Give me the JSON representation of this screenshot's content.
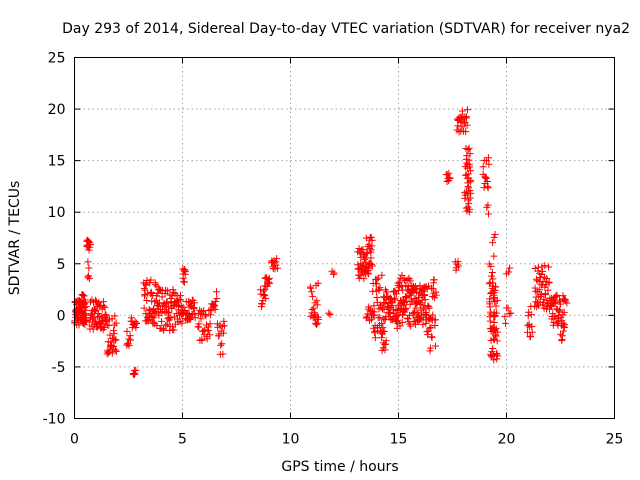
{
  "chart_data": {
    "type": "scatter",
    "title": "Day 293 of 2014, Sidereal Day-to-day VTEC variation (SDTVAR) for receiver nya2",
    "xlabel": "GPS time / hours",
    "ylabel": "SDTVAR / TECUs",
    "xlim": [
      0,
      25
    ],
    "ylim": [
      -10,
      25
    ],
    "xticks": [
      0,
      5,
      10,
      15,
      20,
      25
    ],
    "xtick_labels": [
      "0",
      "5",
      "10",
      "15",
      "20",
      "25"
    ],
    "yticks": [
      -10,
      -5,
      0,
      5,
      10,
      15,
      20,
      25
    ],
    "ytick_labels": [
      "-10",
      "-5",
      "0",
      "5",
      "10",
      "15",
      "20",
      "25"
    ],
    "grid": true,
    "marker": "+",
    "color": "#ff0000",
    "series": [
      {
        "name": "SDTVAR",
        "clusters": [
          {
            "x0": 0.0,
            "x1": 0.55,
            "y0": -1.0,
            "y1": 1.5,
            "n": 70
          },
          {
            "x0": 0.3,
            "x1": 0.5,
            "y0": 1.0,
            "y1": 2.2,
            "n": 6
          },
          {
            "x0": 0.55,
            "x1": 0.75,
            "y0": 6.3,
            "y1": 7.3,
            "n": 12
          },
          {
            "x0": 0.6,
            "x1": 0.7,
            "y0": 3.0,
            "y1": 5.2,
            "n": 5
          },
          {
            "x0": 0.7,
            "x1": 1.5,
            "y0": -1.5,
            "y1": 1.5,
            "n": 60
          },
          {
            "x0": 1.5,
            "x1": 1.95,
            "y0": -4.2,
            "y1": 0.0,
            "n": 30
          },
          {
            "x0": 2.4,
            "x1": 2.6,
            "y0": -3.0,
            "y1": -1.5,
            "n": 8
          },
          {
            "x0": 2.6,
            "x1": 2.9,
            "y0": -1.2,
            "y1": 0.0,
            "n": 12
          },
          {
            "x0": 2.7,
            "x1": 2.85,
            "y0": -5.8,
            "y1": -5.2,
            "n": 6
          },
          {
            "x0": 3.2,
            "x1": 3.95,
            "y0": -1.0,
            "y1": 3.5,
            "n": 60
          },
          {
            "x0": 3.95,
            "x1": 4.7,
            "y0": -1.5,
            "y1": 2.5,
            "n": 55
          },
          {
            "x0": 4.7,
            "x1": 5.05,
            "y0": -1.0,
            "y1": 2.0,
            "n": 25
          },
          {
            "x0": 5.0,
            "x1": 5.15,
            "y0": 3.0,
            "y1": 4.5,
            "n": 10
          },
          {
            "x0": 5.1,
            "x1": 5.6,
            "y0": -0.5,
            "y1": 1.5,
            "n": 30
          },
          {
            "x0": 5.7,
            "x1": 6.3,
            "y0": -2.5,
            "y1": 0.5,
            "n": 30
          },
          {
            "x0": 6.3,
            "x1": 6.6,
            "y0": 0.5,
            "y1": 2.5,
            "n": 12
          },
          {
            "x0": 6.6,
            "x1": 6.95,
            "y0": -4.0,
            "y1": -0.5,
            "n": 15
          },
          {
            "x0": 8.6,
            "x1": 8.85,
            "y0": 0.8,
            "y1": 2.5,
            "n": 12
          },
          {
            "x0": 8.8,
            "x1": 9.05,
            "y0": 2.5,
            "y1": 3.8,
            "n": 12
          },
          {
            "x0": 9.1,
            "x1": 9.4,
            "y0": 4.5,
            "y1": 5.6,
            "n": 12
          },
          {
            "x0": 10.9,
            "x1": 11.3,
            "y0": -0.5,
            "y1": 3.2,
            "n": 20
          },
          {
            "x0": 11.15,
            "x1": 11.3,
            "y0": -0.9,
            "y1": -0.3,
            "n": 4
          },
          {
            "x0": 11.7,
            "x1": 11.85,
            "y0": 0.0,
            "y1": 0.3,
            "n": 2
          },
          {
            "x0": 11.9,
            "x1": 12.05,
            "y0": 3.5,
            "y1": 4.7,
            "n": 3
          },
          {
            "x0": 13.1,
            "x1": 13.45,
            "y0": 3.5,
            "y1": 6.5,
            "n": 30
          },
          {
            "x0": 13.45,
            "x1": 13.8,
            "y0": 4.0,
            "y1": 7.6,
            "n": 30
          },
          {
            "x0": 13.5,
            "x1": 13.8,
            "y0": -0.5,
            "y1": 1.0,
            "n": 12
          },
          {
            "x0": 13.8,
            "x1": 14.3,
            "y0": -2.5,
            "y1": 4.0,
            "n": 40
          },
          {
            "x0": 14.2,
            "x1": 14.45,
            "y0": -3.5,
            "y1": -1.5,
            "n": 10
          },
          {
            "x0": 14.3,
            "x1": 14.9,
            "y0": -0.5,
            "y1": 2.5,
            "n": 45
          },
          {
            "x0": 14.9,
            "x1": 15.6,
            "y0": -1.5,
            "y1": 4.0,
            "n": 70
          },
          {
            "x0": 15.6,
            "x1": 16.3,
            "y0": -1.0,
            "y1": 3.0,
            "n": 70
          },
          {
            "x0": 16.3,
            "x1": 16.75,
            "y0": -3.5,
            "y1": 3.5,
            "n": 35
          },
          {
            "x0": 17.2,
            "x1": 17.4,
            "y0": 12.9,
            "y1": 13.8,
            "n": 8
          },
          {
            "x0": 17.6,
            "x1": 17.8,
            "y0": 4.3,
            "y1": 5.3,
            "n": 6
          },
          {
            "x0": 17.7,
            "x1": 18.2,
            "y0": 17.8,
            "y1": 20.0,
            "n": 25
          },
          {
            "x0": 18.1,
            "x1": 18.35,
            "y0": 12.0,
            "y1": 16.5,
            "n": 25
          },
          {
            "x0": 18.05,
            "x1": 18.35,
            "y0": 10.0,
            "y1": 12.0,
            "n": 14
          },
          {
            "x0": 18.9,
            "x1": 19.2,
            "y0": 12.0,
            "y1": 15.3,
            "n": 14
          },
          {
            "x0": 19.05,
            "x1": 19.2,
            "y0": 9.5,
            "y1": 11.0,
            "n": 3
          },
          {
            "x0": 19.2,
            "x1": 19.45,
            "y0": -4.5,
            "y1": 6.0,
            "n": 45
          },
          {
            "x0": 19.4,
            "x1": 19.6,
            "y0": -4.5,
            "y1": 3.0,
            "n": 25
          },
          {
            "x0": 19.35,
            "x1": 19.5,
            "y0": 7.0,
            "y1": 8.0,
            "n": 3
          },
          {
            "x0": 19.9,
            "x1": 20.2,
            "y0": -1.0,
            "y1": 1.0,
            "n": 6
          },
          {
            "x0": 19.95,
            "x1": 20.2,
            "y0": 4.0,
            "y1": 4.6,
            "n": 3
          },
          {
            "x0": 20.95,
            "x1": 21.2,
            "y0": -2.2,
            "y1": 1.0,
            "n": 12
          },
          {
            "x0": 21.3,
            "x1": 22.0,
            "y0": 0.5,
            "y1": 5.0,
            "n": 50
          },
          {
            "x0": 22.0,
            "x1": 22.5,
            "y0": -1.0,
            "y1": 2.0,
            "n": 35
          },
          {
            "x0": 22.5,
            "x1": 22.7,
            "y0": -2.5,
            "y1": 0.5,
            "n": 14
          },
          {
            "x0": 22.6,
            "x1": 22.8,
            "y0": 1.0,
            "y1": 2.2,
            "n": 6
          }
        ]
      }
    ]
  }
}
